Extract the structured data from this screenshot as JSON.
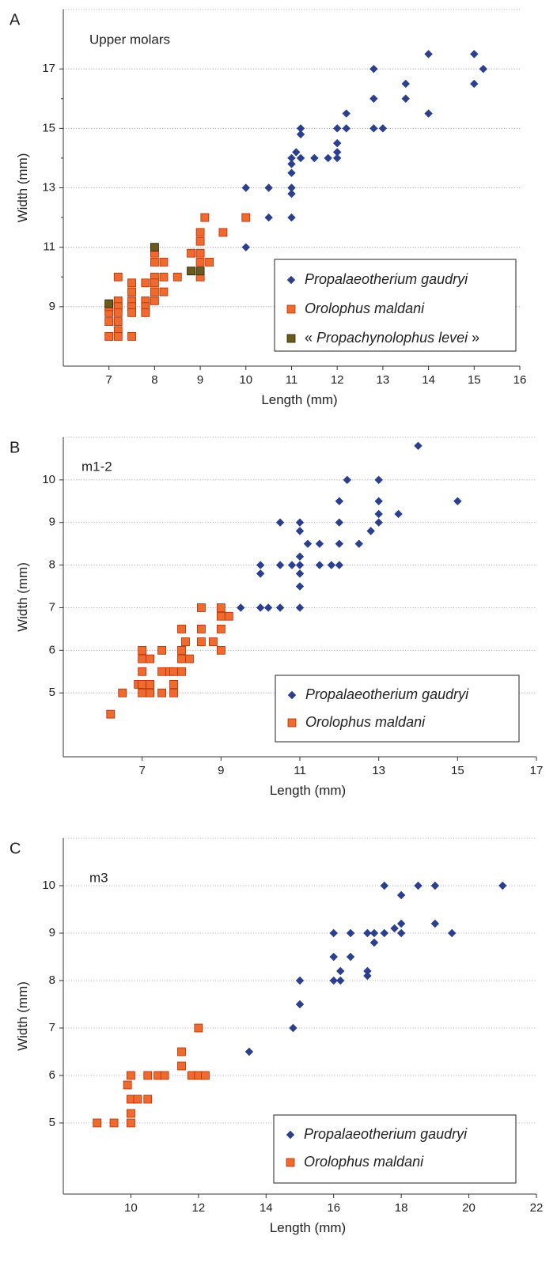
{
  "chart_data": [
    {
      "panel": "A",
      "type": "scatter",
      "title": "Upper molars",
      "xlabel": "Length (mm)",
      "ylabel": "Width (mm)",
      "xlim": [
        6,
        16
      ],
      "ylim": [
        7,
        19
      ],
      "xticks": [
        7,
        8,
        9,
        10,
        11,
        12,
        13,
        14,
        15,
        16
      ],
      "yticks": [
        9,
        11,
        13,
        15,
        17
      ],
      "grid": "horizontal dotted",
      "legend_placement": "bottom-right",
      "series": [
        {
          "name": "Propalaeotherium gaudryi",
          "marker": "diamond",
          "color": "#2b3f8f",
          "points": [
            [
              10,
              13
            ],
            [
              10,
              11
            ],
            [
              10.5,
              13
            ],
            [
              10.5,
              12
            ],
            [
              11,
              14
            ],
            [
              11,
              13.8
            ],
            [
              11,
              13.5
            ],
            [
              11,
              13
            ],
            [
              11,
              12.8
            ],
            [
              11,
              12
            ],
            [
              11.1,
              14.2
            ],
            [
              11.2,
              15
            ],
            [
              11.2,
              14.8
            ],
            [
              11.2,
              14
            ],
            [
              11.5,
              14
            ],
            [
              11.8,
              14
            ],
            [
              12,
              15
            ],
            [
              12,
              14.5
            ],
            [
              12,
              14.2
            ],
            [
              12,
              14
            ],
            [
              12.2,
              15.5
            ],
            [
              12.2,
              15
            ],
            [
              12.8,
              17
            ],
            [
              12.8,
              16
            ],
            [
              12.8,
              15
            ],
            [
              13,
              15
            ],
            [
              13.5,
              16.5
            ],
            [
              13.5,
              16
            ],
            [
              14,
              17.5
            ],
            [
              14,
              15.5
            ],
            [
              15,
              17.5
            ],
            [
              15,
              16.5
            ],
            [
              15.2,
              17
            ]
          ]
        },
        {
          "name": "Orolophus maldani",
          "marker": "square",
          "color": "#ef6a2e",
          "points": [
            [
              7,
              8
            ],
            [
              7,
              8.5
            ],
            [
              7,
              8.8
            ],
            [
              7,
              9
            ],
            [
              7.2,
              10
            ],
            [
              7.2,
              9.2
            ],
            [
              7.2,
              9
            ],
            [
              7.2,
              8.8
            ],
            [
              7.2,
              8.5
            ],
            [
              7.2,
              8.2
            ],
            [
              7.2,
              8
            ],
            [
              7.5,
              9.8
            ],
            [
              7.5,
              9.5
            ],
            [
              7.5,
              9.2
            ],
            [
              7.5,
              9
            ],
            [
              7.5,
              8.8
            ],
            [
              7.5,
              8
            ],
            [
              7.8,
              9.8
            ],
            [
              7.8,
              9.2
            ],
            [
              7.8,
              9
            ],
            [
              7.8,
              8.8
            ],
            [
              8,
              10.8
            ],
            [
              8,
              10.5
            ],
            [
              8,
              10
            ],
            [
              8,
              9.8
            ],
            [
              8,
              9.5
            ],
            [
              8,
              9.2
            ],
            [
              8.2,
              10.5
            ],
            [
              8.2,
              10
            ],
            [
              8.2,
              9.5
            ],
            [
              8.5,
              10
            ],
            [
              8.8,
              10.8
            ],
            [
              9,
              11.5
            ],
            [
              9,
              11.2
            ],
            [
              9,
              10.8
            ],
            [
              9,
              10.5
            ],
            [
              9,
              10
            ],
            [
              9.1,
              12
            ],
            [
              9.2,
              10.5
            ],
            [
              9.5,
              11.5
            ],
            [
              10,
              12
            ]
          ]
        },
        {
          "name": "Propachynolophus levei",
          "legend_prefix": "«",
          "legend_suffix": "»",
          "marker": "square",
          "color": "#6b5a1e",
          "points": [
            [
              7,
              9.1
            ],
            [
              8,
              11
            ],
            [
              8.8,
              10.2
            ],
            [
              9,
              10.2
            ]
          ]
        }
      ]
    },
    {
      "panel": "B",
      "type": "scatter",
      "title": "m1-2",
      "xlabel": "Length (mm)",
      "ylabel": "Width (mm)",
      "xlim": [
        5,
        17
      ],
      "ylim": [
        3.5,
        11
      ],
      "xticks": [
        7,
        9,
        11,
        13,
        15,
        17
      ],
      "yticks": [
        5,
        6,
        7,
        8,
        9,
        10
      ],
      "grid": "horizontal dotted",
      "legend_placement": "bottom-right",
      "series": [
        {
          "name": "Propalaeotherium gaudryi",
          "marker": "diamond",
          "color": "#2b3f8f",
          "points": [
            [
              9.5,
              7
            ],
            [
              10,
              8
            ],
            [
              10,
              7.8
            ],
            [
              10,
              7
            ],
            [
              10.2,
              7
            ],
            [
              10.5,
              9
            ],
            [
              10.5,
              8
            ],
            [
              10.5,
              7
            ],
            [
              10.8,
              8
            ],
            [
              11,
              9
            ],
            [
              11,
              8.8
            ],
            [
              11,
              8.2
            ],
            [
              11,
              8
            ],
            [
              11,
              7.8
            ],
            [
              11,
              7.5
            ],
            [
              11,
              7
            ],
            [
              11.2,
              8.5
            ],
            [
              11.5,
              8.5
            ],
            [
              11.5,
              8
            ],
            [
              11.8,
              8
            ],
            [
              12,
              9.5
            ],
            [
              12,
              9
            ],
            [
              12,
              8.5
            ],
            [
              12,
              8
            ],
            [
              12.2,
              10
            ],
            [
              12.5,
              8.5
            ],
            [
              12.8,
              8.8
            ],
            [
              13,
              10
            ],
            [
              13,
              9.5
            ],
            [
              13,
              9.2
            ],
            [
              13,
              9
            ],
            [
              13.5,
              9.2
            ],
            [
              14,
              10.8
            ],
            [
              15,
              9.5
            ]
          ]
        },
        {
          "name": "Orolophus maldani",
          "marker": "square",
          "color": "#ef6a2e",
          "points": [
            [
              6.2,
              4.5
            ],
            [
              6.5,
              5
            ],
            [
              6.9,
              5.2
            ],
            [
              7,
              6
            ],
            [
              7,
              5.8
            ],
            [
              7,
              5.5
            ],
            [
              7,
              5.2
            ],
            [
              7,
              5
            ],
            [
              7.2,
              5.8
            ],
            [
              7.2,
              5.2
            ],
            [
              7.2,
              5
            ],
            [
              7.5,
              6
            ],
            [
              7.5,
              5.5
            ],
            [
              7.5,
              5
            ],
            [
              7.7,
              5.5
            ],
            [
              7.8,
              5.5
            ],
            [
              7.8,
              5.2
            ],
            [
              7.8,
              5
            ],
            [
              8,
              6.5
            ],
            [
              8,
              6
            ],
            [
              8,
              5.8
            ],
            [
              8,
              5.5
            ],
            [
              8.1,
              6.2
            ],
            [
              8.2,
              5.8
            ],
            [
              8.5,
              7
            ],
            [
              8.5,
              6.5
            ],
            [
              8.5,
              6.2
            ],
            [
              8.8,
              6.2
            ],
            [
              9,
              7
            ],
            [
              9,
              6.8
            ],
            [
              9,
              6.5
            ],
            [
              9,
              6
            ],
            [
              9.2,
              6.8
            ]
          ]
        }
      ]
    },
    {
      "panel": "C",
      "type": "scatter",
      "title": "m3",
      "xlabel": "Length (mm)",
      "ylabel": "Width (mm)",
      "xlim": [
        8,
        22
      ],
      "ylim": [
        3.5,
        11
      ],
      "xticks": [
        10,
        12,
        14,
        16,
        18,
        20,
        22
      ],
      "yticks": [
        5,
        6,
        7,
        8,
        9,
        10
      ],
      "grid": "horizontal dotted",
      "legend_placement": "bottom-right",
      "series": [
        {
          "name": "Propalaeotherium gaudryi",
          "marker": "diamond",
          "color": "#2b3f8f",
          "points": [
            [
              13.5,
              6.5
            ],
            [
              14.8,
              7
            ],
            [
              15,
              8
            ],
            [
              15,
              7.5
            ],
            [
              16,
              9
            ],
            [
              16,
              8.5
            ],
            [
              16,
              8
            ],
            [
              16.2,
              8.2
            ],
            [
              16.2,
              8
            ],
            [
              16.5,
              9
            ],
            [
              16.5,
              8.5
            ],
            [
              17,
              9
            ],
            [
              17,
              8.2
            ],
            [
              17,
              8.1
            ],
            [
              17.2,
              9
            ],
            [
              17.2,
              8.8
            ],
            [
              17.5,
              10
            ],
            [
              17.5,
              9
            ],
            [
              17.8,
              9.1
            ],
            [
              18,
              9.8
            ],
            [
              18,
              9.2
            ],
            [
              18,
              9
            ],
            [
              18.5,
              10
            ],
            [
              19,
              10
            ],
            [
              19,
              9.2
            ],
            [
              19.5,
              9
            ],
            [
              21,
              10
            ]
          ]
        },
        {
          "name": "Orolophus maldani",
          "marker": "square",
          "color": "#ef6a2e",
          "points": [
            [
              9,
              5
            ],
            [
              9.5,
              5
            ],
            [
              9.9,
              5.8
            ],
            [
              10,
              6
            ],
            [
              10,
              5.5
            ],
            [
              10,
              5.2
            ],
            [
              10,
              5
            ],
            [
              10.2,
              5.5
            ],
            [
              10.5,
              6
            ],
            [
              10.5,
              5.5
            ],
            [
              10.8,
              6
            ],
            [
              11,
              6
            ],
            [
              11.5,
              6.5
            ],
            [
              11.5,
              6.2
            ],
            [
              11.8,
              6
            ],
            [
              12,
              7
            ],
            [
              12,
              6
            ],
            [
              12.2,
              6
            ]
          ]
        }
      ]
    }
  ]
}
